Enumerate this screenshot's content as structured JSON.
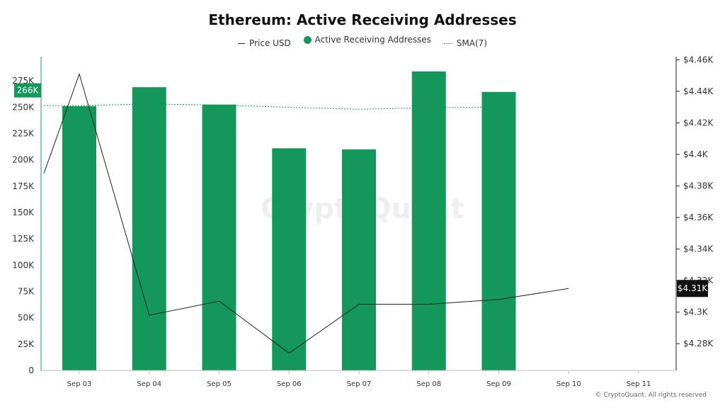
{
  "chart_data": {
    "type": "bar",
    "title": "Ethereum: Active Receiving Addresses",
    "categories": [
      "Sep 03",
      "Sep 04",
      "Sep 05",
      "Sep 06",
      "Sep 07",
      "Sep 08",
      "Sep 09",
      "Sep 10",
      "Sep 11"
    ],
    "series": [
      {
        "name": "Active Receiving Addresses",
        "type": "bar",
        "axis": "left",
        "color": "#14975b",
        "values": [
          251000,
          269000,
          252500,
          211000,
          210000,
          284000,
          264500,
          null,
          null
        ]
      },
      {
        "name": "SMA(7)",
        "type": "line",
        "axis": "left",
        "color": "#14975b",
        "values": [
          251500,
          253000,
          252000,
          250000,
          248000,
          249500,
          250000,
          null,
          null
        ]
      },
      {
        "name": "Price USD",
        "type": "line",
        "axis": "right",
        "color": "#222222",
        "start": 4388,
        "values": [
          4451,
          4298,
          4307,
          4274,
          4305,
          4305,
          4308,
          4315,
          null
        ]
      }
    ],
    "y_left": {
      "ylim": [
        0,
        298000
      ],
      "ticks": [
        0,
        25000,
        50000,
        75000,
        100000,
        125000,
        150000,
        175000,
        200000,
        225000,
        250000,
        275000
      ],
      "tick_labels": [
        "0",
        "25K",
        "50K",
        "75K",
        "100K",
        "125K",
        "150K",
        "175K",
        "200K",
        "225K",
        "250K",
        "275K"
      ],
      "badge": {
        "value": 266000,
        "label": "266K"
      }
    },
    "y_right": {
      "ylim": [
        4263,
        4462
      ],
      "ticks": [
        4280,
        4300,
        4320,
        4340,
        4360,
        4380,
        4400,
        4420,
        4440,
        4460
      ],
      "tick_labels": [
        "$4.28K",
        "$4.3K",
        "$4.32K",
        "$4.34K",
        "$4.36K",
        "$4.38K",
        "$4.4K",
        "$4.42K",
        "$4.44K",
        "$4.46K"
      ],
      "badge": {
        "value": 4315,
        "label": "$4.31K"
      }
    },
    "legend": {
      "placement": "top-center",
      "items": [
        "Price USD",
        "Active Receiving Addresses",
        "SMA(7)"
      ]
    },
    "grid": false
  },
  "watermark": "CryptoQuant",
  "footer": "© CryptoQuant. All rights reserved"
}
